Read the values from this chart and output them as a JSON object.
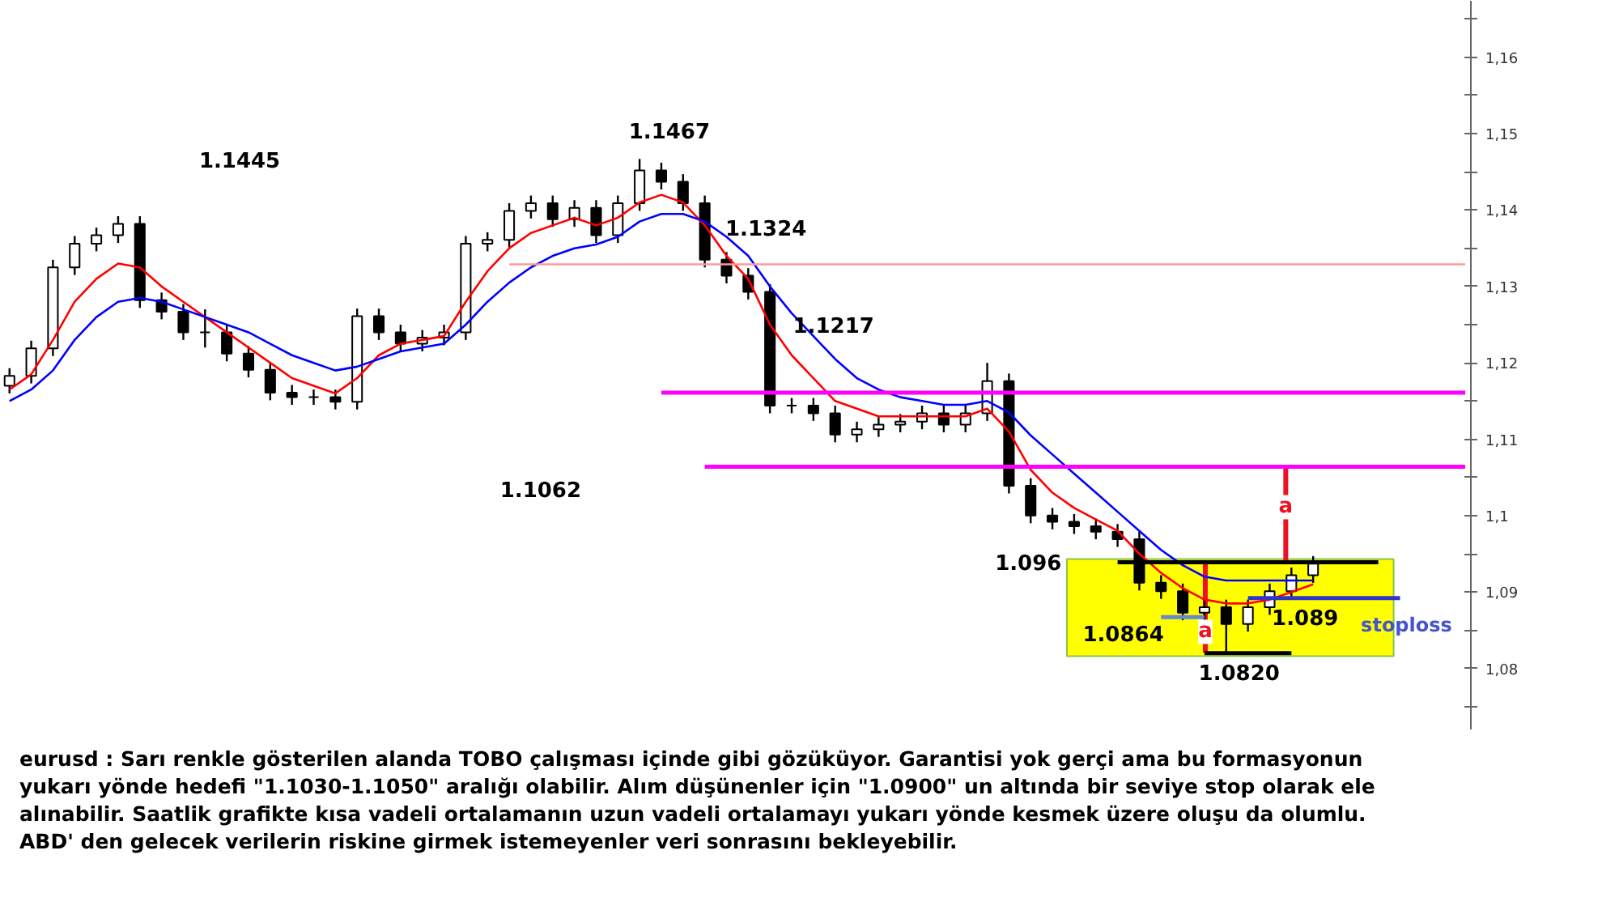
{
  "chart_data": {
    "type": "candlestick",
    "color": "#000000",
    "categories": [
      null,
      null,
      null,
      null,
      null,
      null,
      null,
      null,
      null,
      null,
      null,
      null,
      null,
      null,
      null,
      null,
      null,
      null,
      null,
      null,
      null,
      null,
      null,
      null,
      null,
      null,
      null,
      null,
      null,
      null,
      null,
      null,
      null,
      null,
      null,
      null,
      null,
      null,
      null,
      null,
      null,
      null,
      null,
      null,
      null,
      null,
      null,
      null,
      null,
      null,
      null,
      null,
      null,
      null,
      null,
      null,
      null,
      null,
      null,
      null,
      null,
      null,
      null,
      null,
      null,
      null,
      null,
      null
    ],
    "ohlc": [
      [
        1.117,
        1.1193,
        1.116,
        1.1183
      ],
      [
        1.1183,
        1.1229,
        1.1173,
        1.1219
      ],
      [
        1.1219,
        1.1335,
        1.1209,
        1.1325
      ],
      [
        1.1325,
        1.1366,
        1.1315,
        1.1356
      ],
      [
        1.1356,
        1.1377,
        1.1346,
        1.1367
      ],
      [
        1.1367,
        1.1392,
        1.1357,
        1.1382
      ],
      [
        1.1382,
        1.1392,
        1.1272,
        1.1282
      ],
      [
        1.1282,
        1.1292,
        1.1257,
        1.1267
      ],
      [
        1.1267,
        1.1277,
        1.123,
        1.124
      ],
      [
        1.124,
        1.127,
        1.122,
        1.124
      ],
      [
        1.124,
        1.125,
        1.1202,
        1.1212
      ],
      [
        1.1212,
        1.1222,
        1.1181,
        1.1191
      ],
      [
        1.1191,
        1.1201,
        1.1151,
        1.1161
      ],
      [
        1.1161,
        1.1171,
        1.1145,
        1.1155
      ],
      [
        1.1155,
        1.1165,
        1.1145,
        1.1155
      ],
      [
        1.1155,
        1.1165,
        1.1139,
        1.1149
      ],
      [
        1.1149,
        1.1271,
        1.1139,
        1.1261
      ],
      [
        1.1261,
        1.1271,
        1.123,
        1.124
      ],
      [
        1.124,
        1.125,
        1.1215,
        1.1225
      ],
      [
        1.1225,
        1.1243,
        1.1215,
        1.1233
      ],
      [
        1.1233,
        1.125,
        1.1223,
        1.124
      ],
      [
        1.124,
        1.1366,
        1.123,
        1.1356
      ],
      [
        1.1356,
        1.1371,
        1.1346,
        1.1361
      ],
      [
        1.1361,
        1.1409,
        1.1351,
        1.1399
      ],
      [
        1.1399,
        1.1419,
        1.1389,
        1.1409
      ],
      [
        1.1409,
        1.1419,
        1.1378,
        1.1388
      ],
      [
        1.1388,
        1.1413,
        1.1378,
        1.1403
      ],
      [
        1.1403,
        1.1413,
        1.1357,
        1.1367
      ],
      [
        1.1367,
        1.1419,
        1.1357,
        1.1409
      ],
      [
        1.1409,
        1.1467,
        1.1399,
        1.1452
      ],
      [
        1.1452,
        1.1462,
        1.1427,
        1.1437
      ],
      [
        1.1437,
        1.1447,
        1.1399,
        1.1409
      ],
      [
        1.1409,
        1.1419,
        1.1325,
        1.1335
      ],
      [
        1.1335,
        1.1345,
        1.1304,
        1.1314
      ],
      [
        1.1314,
        1.1324,
        1.1283,
        1.1293
      ],
      [
        1.1293,
        1.1303,
        1.1134,
        1.1144
      ],
      [
        1.1144,
        1.1154,
        1.1134,
        1.1144
      ],
      [
        1.1144,
        1.1154,
        1.1124,
        1.1134
      ],
      [
        1.1134,
        1.1144,
        1.1096,
        1.1106
      ],
      [
        1.1106,
        1.1123,
        1.1096,
        1.1113
      ],
      [
        1.1113,
        1.1129,
        1.1103,
        1.1119
      ],
      [
        1.1119,
        1.1133,
        1.1109,
        1.1123
      ],
      [
        1.1123,
        1.1144,
        1.1113,
        1.1134
      ],
      [
        1.1134,
        1.1144,
        1.1109,
        1.1119
      ],
      [
        1.1119,
        1.1144,
        1.1109,
        1.1134
      ],
      [
        1.1134,
        1.12,
        1.1124,
        1.1176
      ],
      [
        1.1176,
        1.1186,
        1.1029,
        1.1039
      ],
      [
        1.1039,
        1.1049,
        1.099,
        1.1
      ],
      [
        1.1,
        1.101,
        1.0982,
        1.0992
      ],
      [
        1.0992,
        1.1002,
        1.0976,
        1.0986
      ],
      [
        1.0986,
        1.0996,
        1.0969,
        1.0979
      ],
      [
        1.0979,
        1.0989,
        1.0959,
        1.0969
      ],
      [
        1.0969,
        1.0979,
        1.0902,
        1.0912
      ],
      [
        1.0912,
        1.0922,
        1.0891,
        1.0901
      ],
      [
        1.0901,
        1.0911,
        1.0863,
        1.0873
      ],
      [
        1.0873,
        1.089,
        1.0863,
        1.088
      ],
      [
        1.088,
        1.089,
        1.082,
        1.0858
      ],
      [
        1.0858,
        1.089,
        1.0848,
        1.088
      ],
      [
        1.088,
        1.0911,
        1.087,
        1.0901
      ],
      [
        1.0901,
        1.0932,
        1.0891,
        1.0922
      ],
      [
        1.0922,
        1.0947,
        1.0912,
        1.0937
      ],
      null,
      null,
      null,
      null,
      null,
      null,
      null
    ],
    "series": [
      {
        "type": "line",
        "color": "#ff0000",
        "values": [
          1.1165,
          1.1185,
          1.123,
          1.128,
          1.131,
          1.133,
          1.1325,
          1.13,
          1.128,
          1.126,
          1.124,
          1.122,
          1.12,
          1.118,
          1.117,
          1.116,
          1.118,
          1.121,
          1.1225,
          1.123,
          1.1235,
          1.128,
          1.132,
          1.135,
          1.137,
          1.138,
          1.139,
          1.138,
          1.139,
          1.141,
          1.142,
          1.141,
          1.138,
          1.134,
          1.131,
          1.125,
          1.121,
          1.118,
          1.115,
          1.114,
          1.113,
          1.113,
          1.113,
          1.113,
          1.113,
          1.114,
          1.111,
          1.106,
          1.103,
          1.101,
          1.0995,
          1.098,
          1.095,
          1.0925,
          1.0905,
          1.089,
          1.0885,
          1.0885,
          1.089,
          1.09,
          1.091,
          null,
          null,
          null,
          null,
          null,
          null,
          null
        ]
      },
      {
        "type": "line",
        "color": "#0000ff",
        "values": [
          1.115,
          1.1165,
          1.119,
          1.123,
          1.126,
          1.128,
          1.1285,
          1.128,
          1.127,
          1.126,
          1.125,
          1.124,
          1.1225,
          1.121,
          1.12,
          1.119,
          1.1195,
          1.1205,
          1.1215,
          1.122,
          1.1225,
          1.125,
          1.128,
          1.1305,
          1.1325,
          1.134,
          1.135,
          1.1355,
          1.1365,
          1.1385,
          1.1395,
          1.1395,
          1.1385,
          1.1365,
          1.134,
          1.13,
          1.1265,
          1.1235,
          1.1205,
          1.118,
          1.1165,
          1.1155,
          1.115,
          1.1145,
          1.1145,
          1.115,
          1.1135,
          1.1105,
          1.108,
          1.1055,
          1.103,
          1.1005,
          1.098,
          1.0955,
          1.0935,
          1.092,
          1.0915,
          1.0915,
          1.0915,
          1.0915,
          1.0915,
          null,
          null,
          null,
          null,
          null,
          null,
          null
        ]
      },
      {
        "type": "line",
        "color": "#ff9999",
        "values": [
          null,
          null,
          null,
          null,
          null,
          null,
          null,
          null,
          null,
          null,
          null,
          null,
          null,
          null,
          null,
          null,
          null,
          null,
          null,
          null,
          null,
          null,
          null,
          1.1329,
          1.1329,
          1.1329,
          1.1329,
          1.1329,
          1.1329,
          1.1329,
          1.1329,
          1.1329,
          1.1329,
          1.1329,
          1.1329,
          1.1329,
          1.1329,
          1.1329,
          1.1329,
          1.1329,
          1.1329,
          1.1329,
          1.1329,
          1.1329,
          1.1329,
          1.1329,
          1.1329,
          1.1329,
          1.1329,
          1.1329,
          1.1329,
          1.1329,
          1.1329,
          1.1329,
          1.1329,
          1.1329,
          1.1329,
          1.1329,
          1.1329,
          1.1329,
          1.1329,
          1.1329,
          1.1329,
          1.1329,
          1.1329,
          1.1329,
          1.1329,
          1.1329
        ]
      },
      {
        "type": "line",
        "color": "#ff00ff",
        "values": [
          null,
          null,
          null,
          null,
          null,
          null,
          null,
          null,
          null,
          null,
          null,
          null,
          null,
          null,
          null,
          null,
          null,
          null,
          null,
          null,
          null,
          null,
          null,
          null,
          null,
          null,
          null,
          null,
          null,
          null,
          1.1161,
          1.1161,
          1.1161,
          1.1161,
          1.1161,
          1.1161,
          1.1161,
          1.1161,
          1.1161,
          1.1161,
          1.1161,
          1.1161,
          1.1161,
          1.1161,
          1.1161,
          1.1161,
          1.1161,
          1.1161,
          1.1161,
          1.1161,
          1.1161,
          1.1161,
          1.1161,
          1.1161,
          1.1161,
          1.1161,
          1.1161,
          1.1161,
          1.1161,
          1.1161,
          1.1161,
          1.1161,
          1.1161,
          1.1161,
          1.1161,
          1.1161,
          1.1161,
          1.1161
        ]
      },
      {
        "type": "line",
        "color": "#ff00ff",
        "values": [
          null,
          null,
          null,
          null,
          null,
          null,
          null,
          null,
          null,
          null,
          null,
          null,
          null,
          null,
          null,
          null,
          null,
          null,
          null,
          null,
          null,
          null,
          null,
          null,
          null,
          null,
          null,
          null,
          null,
          null,
          null,
          null,
          1.1064,
          1.1064,
          1.1064,
          1.1064,
          1.1064,
          1.1064,
          1.1064,
          1.1064,
          1.1064,
          1.1064,
          1.1064,
          1.1064,
          1.1064,
          1.1064,
          1.1064,
          1.1064,
          1.1064,
          1.1064,
          1.1064,
          1.1064,
          1.1064,
          1.1064,
          1.1064,
          1.1064,
          1.1064,
          1.1064,
          1.1064,
          1.1064,
          1.1064,
          1.1064,
          1.1064,
          1.1064,
          1.1064,
          1.1064,
          1.1064,
          1.1064
        ]
      },
      {
        "type": "line",
        "color": "#000000",
        "values": [
          null,
          null,
          null,
          null,
          null,
          null,
          null,
          null,
          null,
          null,
          null,
          null,
          null,
          null,
          null,
          null,
          null,
          null,
          null,
          null,
          null,
          null,
          null,
          null,
          null,
          null,
          null,
          null,
          null,
          null,
          null,
          null,
          null,
          null,
          null,
          null,
          null,
          null,
          null,
          null,
          null,
          null,
          null,
          null,
          null,
          null,
          null,
          null,
          null,
          null,
          null,
          1.0939,
          1.0939,
          1.0939,
          1.0939,
          1.0939,
          1.0939,
          1.0939,
          1.0939,
          1.0939,
          1.0939,
          1.0939,
          1.0939,
          1.0939,
          null,
          null,
          null,
          null
        ]
      },
      {
        "type": "line",
        "color": "#000000",
        "values": [
          null,
          null,
          null,
          null,
          null,
          null,
          null,
          null,
          null,
          null,
          null,
          null,
          null,
          null,
          null,
          null,
          null,
          null,
          null,
          null,
          null,
          null,
          null,
          null,
          null,
          null,
          null,
          null,
          null,
          null,
          null,
          null,
          null,
          null,
          null,
          null,
          null,
          null,
          null,
          null,
          null,
          null,
          null,
          null,
          null,
          null,
          null,
          null,
          null,
          null,
          null,
          null,
          null,
          null,
          null,
          1.082,
          1.082,
          1.082,
          1.082,
          1.082,
          null,
          null,
          null,
          null,
          null,
          null,
          null,
          null
        ]
      },
      {
        "type": "line",
        "color": "#3333cc",
        "values": [
          null,
          null,
          null,
          null,
          null,
          null,
          null,
          null,
          null,
          null,
          null,
          null,
          null,
          null,
          null,
          null,
          null,
          null,
          null,
          null,
          null,
          null,
          null,
          null,
          null,
          null,
          null,
          null,
          null,
          null,
          null,
          null,
          null,
          null,
          null,
          null,
          null,
          null,
          null,
          null,
          null,
          null,
          null,
          null,
          null,
          null,
          null,
          null,
          null,
          null,
          null,
          null,
          null,
          null,
          null,
          null,
          null,
          1.0892,
          1.0892,
          1.0892,
          1.0892,
          1.0892,
          1.0892,
          1.0892,
          1.0892,
          null,
          null,
          null
        ]
      },
      {
        "type": "line",
        "color": "#6688cc",
        "values": [
          null,
          null,
          null,
          null,
          null,
          null,
          null,
          null,
          null,
          null,
          null,
          null,
          null,
          null,
          null,
          null,
          null,
          null,
          null,
          null,
          null,
          null,
          null,
          null,
          null,
          null,
          null,
          null,
          null,
          null,
          null,
          null,
          null,
          null,
          null,
          null,
          null,
          null,
          null,
          null,
          null,
          null,
          null,
          null,
          null,
          null,
          null,
          null,
          null,
          null,
          null,
          null,
          null,
          1.0867,
          1.0867,
          1.0867,
          null,
          null,
          null,
          null,
          null,
          null,
          null,
          null,
          null,
          null,
          null,
          null
        ]
      }
    ],
    "ylim": [
      1.072,
      1.1674
    ],
    "yticks": [
      {
        "value": 1.075,
        "label": null
      },
      {
        "value": 1.08,
        "label": "1,08"
      },
      {
        "value": 1.085,
        "label": null
      },
      {
        "value": 1.09,
        "label": "1,09"
      },
      {
        "value": 1.095,
        "label": null
      },
      {
        "value": 1.1,
        "label": "1,1"
      },
      {
        "value": 1.105,
        "label": null
      },
      {
        "value": 1.11,
        "label": "1,11"
      },
      {
        "value": 1.115,
        "label": null
      },
      {
        "value": 1.12,
        "label": "1,12"
      },
      {
        "value": 1.125,
        "label": null
      },
      {
        "value": 1.13,
        "label": "1,13"
      },
      {
        "value": 1.135,
        "label": null
      },
      {
        "value": 1.14,
        "label": "1,14"
      },
      {
        "value": 1.145,
        "label": null
      },
      {
        "value": 1.15,
        "label": "1,15"
      },
      {
        "value": 1.155,
        "label": null
      },
      {
        "value": 1.16,
        "label": "1,16"
      },
      {
        "value": 1.165,
        "label": null
      }
    ],
    "tick_labels": "y",
    "grid": false,
    "bands": [
      {
        "axis": "y",
        "from": 1.0816,
        "to": 1.0943,
        "color": "#ffff00"
      }
    ],
    "annotations": [
      "1.1445",
      "1.1467",
      "1.1324",
      "1.1217",
      "1.1062",
      "1.096",
      "1.0864",
      "1.089",
      "1.0820",
      "a",
      "a",
      "stoploss",
      "eurusd : Sarı renkle gösterilen alanda TOBO çalışması içinde gibi gözüküyor. Garantisi yok gerçi ama bu formasyonun\nyukarı yönde hedefi \"1.1030-1.1050\" aralığı olabilir. Alım düşünenler için \"1.0900\" un altında bir seviye stop olarak ele\nalınabilir. Saatlik grafikte kısa vadeli ortalamanın uzun vadeli ortalamayı yukarı yönde kesmek üzere oluşu da olumlu.\nABD' den gelecek verilerin riskine girmek istemeyenler veri sonrasını bekleyebilir."
    ]
  }
}
